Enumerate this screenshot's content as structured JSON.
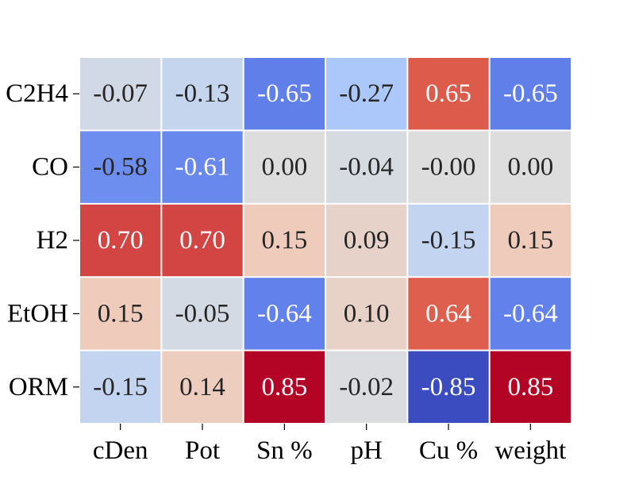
{
  "chart_data": {
    "type": "heatmap",
    "title": "",
    "xlabel": "",
    "ylabel": "",
    "x_categories": [
      "cDen",
      "Pot",
      "Sn %",
      "pH",
      "Cu %",
      "weight"
    ],
    "y_categories": [
      "C2H4",
      "CO",
      "H2",
      "EtOH",
      "ORM"
    ],
    "values": [
      [
        -0.07,
        -0.13,
        -0.65,
        -0.27,
        0.65,
        -0.65
      ],
      [
        -0.58,
        -0.61,
        0.0,
        -0.04,
        -0.0,
        0.0
      ],
      [
        0.7,
        0.7,
        0.15,
        0.09,
        -0.15,
        0.15
      ],
      [
        0.15,
        -0.05,
        -0.64,
        0.1,
        0.64,
        -0.64
      ],
      [
        -0.15,
        0.14,
        0.85,
        -0.02,
        -0.85,
        0.85
      ]
    ],
    "value_labels": [
      [
        "-0.07",
        "-0.13",
        "-0.65",
        "-0.27",
        "0.65",
        "-0.65"
      ],
      [
        "-0.58",
        "-0.61",
        "0.00",
        "-0.04",
        "-0.00",
        "0.00"
      ],
      [
        "0.70",
        "0.70",
        "0.15",
        "0.09",
        "-0.15",
        "0.15"
      ],
      [
        "0.15",
        "-0.05",
        "-0.64",
        "0.10",
        "0.64",
        "-0.64"
      ],
      [
        "-0.15",
        "0.14",
        "0.85",
        "-0.02",
        "-0.85",
        "0.85"
      ]
    ],
    "colormap": "coolwarm",
    "vmin": -0.85,
    "vmax": 0.85,
    "colorbar": false,
    "cell_separator_color": "#ffffff"
  }
}
